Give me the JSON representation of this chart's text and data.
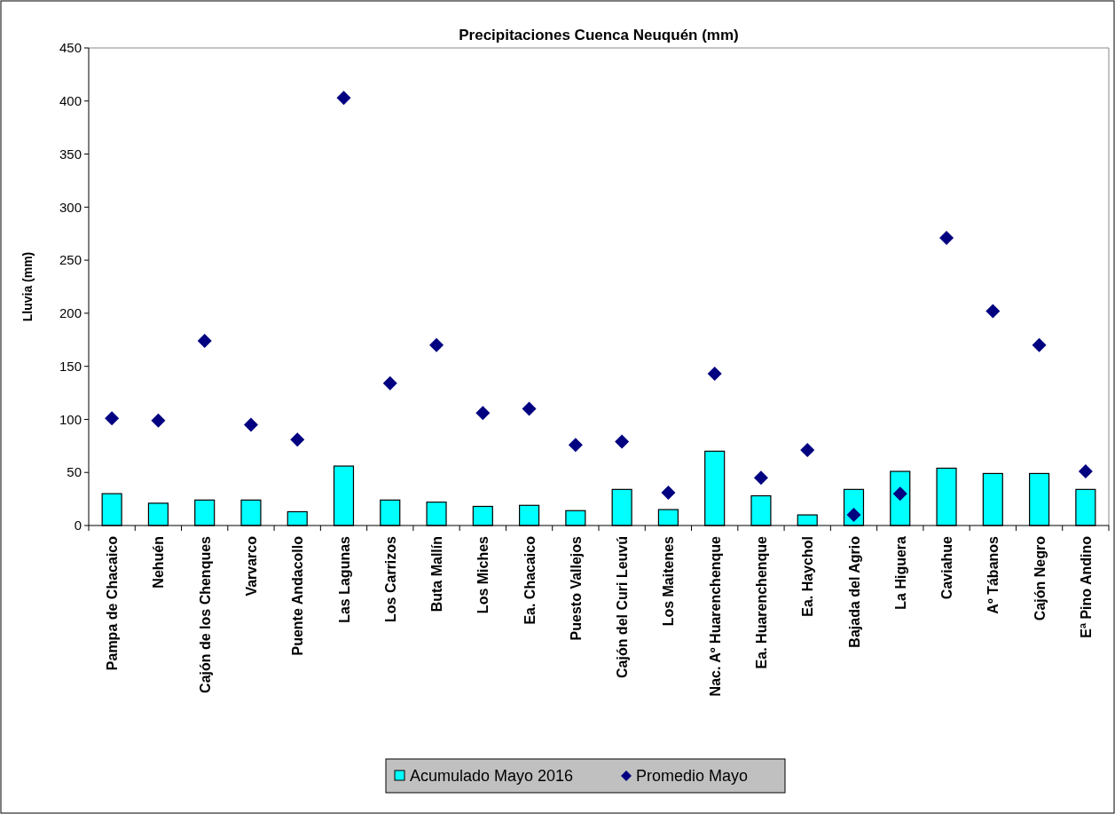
{
  "chart_data": {
    "type": "bar",
    "title": "Precipitaciones Cuenca Neuquén (mm)",
    "ylabel": "Lluvia (mm)",
    "categories": [
      "Pampa de Chacaico",
      "Nehuén",
      "Cajón de los Chenques",
      "Varvarco",
      "Puente Andacollo",
      "Las Lagunas",
      "Los Carrizos",
      "Buta Mallín",
      "Los Miches",
      "Ea. Chacaico",
      "Puesto Vallejos",
      "Cajón del Curi Leuvú",
      "Los Maitenes",
      "Nac. Aº Huarenchenque",
      "Ea. Huarenchenque",
      "Ea. Haychol",
      "Bajada del Agrio",
      "La Higuera",
      "Caviahue",
      "Aº Tábanos",
      "Cajón Negro",
      "Eª Pino Andino"
    ],
    "series": [
      {
        "name": "Acumulado Mayo 2016",
        "color": "#00ffff",
        "values": [
          30,
          21,
          24,
          24,
          13,
          56,
          24,
          22,
          18,
          19,
          14,
          34,
          15,
          70,
          28,
          10,
          34,
          51,
          54,
          49,
          49,
          34
        ]
      },
      {
        "name": "Promedio Mayo",
        "type": "scatter",
        "marker": "diamond",
        "color": "#000080",
        "x": [
          "Pampa de Chacaico",
          "Nehuén",
          "Cajón de los Chenques",
          "Varvarco",
          "Puente Andacollo",
          "Las Lagunas",
          "Los Carrizos",
          "Buta Mallín",
          "Los Miches",
          "Ea. Chacaico",
          "Puesto Vallejos",
          "Cajón del Curi Leuvú",
          "Los Maitenes",
          "Nac. Aº Huarenchenque",
          "Ea. Huarenchenque",
          "Ea. Haychol",
          "Bajada del Agrio",
          "La Higuera",
          "Caviahue",
          "Aº Tábanos",
          "Cajón Negro",
          "Eª Pino Andino"
        ],
        "values": [
          101,
          99,
          174,
          95,
          81,
          403,
          134,
          170,
          106,
          110,
          76,
          79,
          31,
          143,
          45,
          71,
          10,
          30,
          271,
          202,
          170,
          51
        ]
      }
    ],
    "ylim": [
      0,
      450
    ],
    "yticks": [
      0,
      50,
      100,
      150,
      200,
      250,
      300,
      350,
      400,
      450
    ],
    "grid": false,
    "legend": "bottom"
  }
}
